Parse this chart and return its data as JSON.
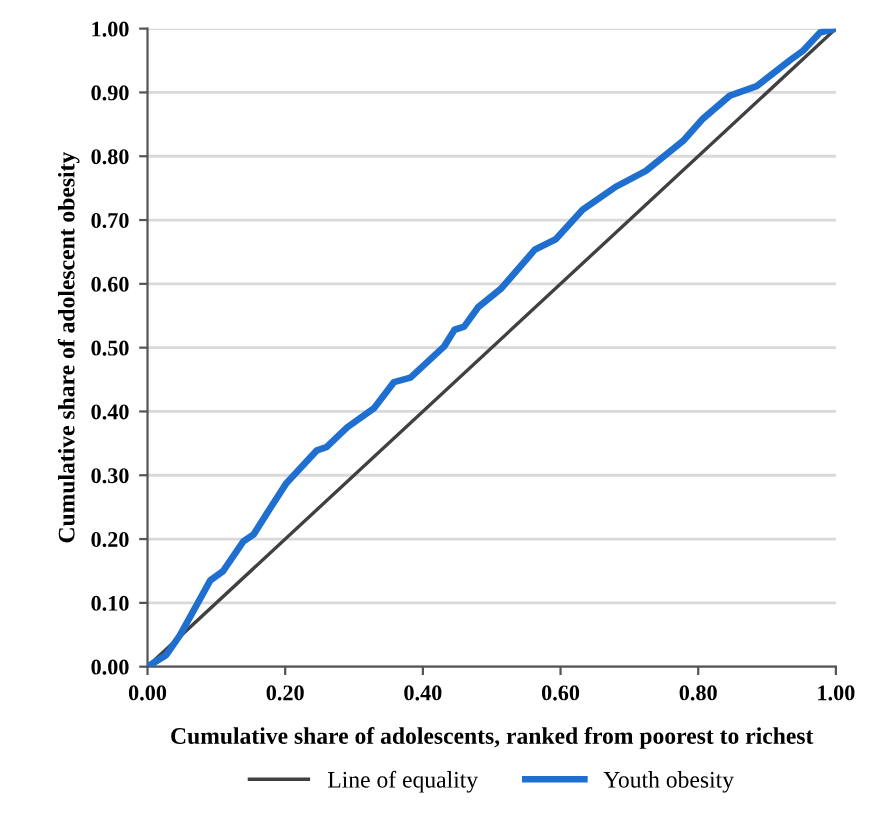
{
  "chart_data": {
    "type": "line",
    "xlabel": "Cumulative share of adolescents, ranked from poorest to richest",
    "ylabel": "Cumulative share of adolescent obesity",
    "xlim": [
      0,
      1
    ],
    "ylim": [
      0,
      1
    ],
    "xticks": [
      {
        "value": 0,
        "label": "0.00"
      },
      {
        "value": 0.2,
        "label": "0.20"
      },
      {
        "value": 0.4,
        "label": "0.40"
      },
      {
        "value": 0.6,
        "label": "0.60"
      },
      {
        "value": 0.8,
        "label": "0.80"
      },
      {
        "value": 1,
        "label": "1.00"
      }
    ],
    "yticks": [
      {
        "value": 0,
        "label": "0.00"
      },
      {
        "value": 0.1,
        "label": "0.10"
      },
      {
        "value": 0.2,
        "label": "0.20"
      },
      {
        "value": 0.3,
        "label": "0.30"
      },
      {
        "value": 0.4,
        "label": "0.40"
      },
      {
        "value": 0.5,
        "label": "0.50"
      },
      {
        "value": 0.6,
        "label": "0.60"
      },
      {
        "value": 0.7,
        "label": "0.70"
      },
      {
        "value": 0.8,
        "label": "0.80"
      },
      {
        "value": 0.9,
        "label": "0.90"
      },
      {
        "value": 1,
        "label": "1.00"
      }
    ],
    "grid": "y",
    "legend": "bottom",
    "marker": "none",
    "line_style": "solid",
    "series": [
      {
        "name": "Line of equality",
        "color": "#404040",
        "x": [
          0,
          1
        ],
        "values": [
          0,
          1
        ]
      },
      {
        "name": "Youth obesity",
        "color": "#1f6fd0",
        "x": [
          0,
          0.027,
          0.047,
          0.091,
          0.11,
          0.139,
          0.154,
          0.178,
          0.202,
          0.246,
          0.26,
          0.29,
          0.329,
          0.358,
          0.382,
          0.431,
          0.446,
          0.46,
          0.48,
          0.514,
          0.539,
          0.563,
          0.593,
          0.632,
          0.68,
          0.724,
          0.778,
          0.807,
          0.846,
          0.885,
          0.934,
          0.953,
          0.977,
          1.0
        ],
        "values": [
          0,
          0.018,
          0.049,
          0.135,
          0.15,
          0.196,
          0.207,
          0.248,
          0.288,
          0.339,
          0.344,
          0.375,
          0.405,
          0.446,
          0.453,
          0.502,
          0.528,
          0.533,
          0.563,
          0.593,
          0.624,
          0.654,
          0.67,
          0.716,
          0.752,
          0.777,
          0.824,
          0.859,
          0.895,
          0.91,
          0.951,
          0.966,
          0.994,
          1.0
        ]
      }
    ]
  }
}
